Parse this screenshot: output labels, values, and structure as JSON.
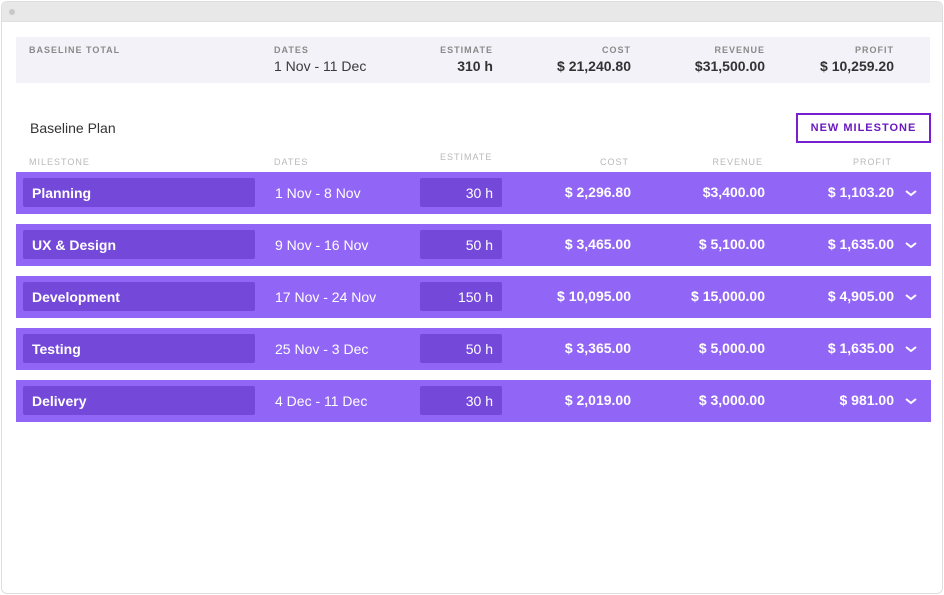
{
  "summary": {
    "label": "BASELINE TOTAL",
    "dates_label": "DATES",
    "dates_value": "1 Nov - 11 Dec",
    "estimate_label": "ESTIMATE",
    "estimate_value": "310 h",
    "cost_label": "COST",
    "cost_value": "$ 21,240.80",
    "revenue_label": "REVENUE",
    "revenue_value": "$31,500.00",
    "profit_label": "PROFIT",
    "profit_value": "$ 10,259.20"
  },
  "plan": {
    "title": "Baseline Plan",
    "new_button": "NEW MILESTONE"
  },
  "columns": {
    "milestone": "MILESTONE",
    "dates": "DATES",
    "estimate": "ESTIMATE",
    "cost": "COST",
    "revenue": "REVENUE",
    "profit": "PROFIT"
  },
  "milestones": [
    {
      "name": "Planning",
      "dates": "1 Nov - 8 Nov",
      "estimate": "30 h",
      "cost": "$ 2,296.80",
      "revenue": "$3,400.00",
      "profit": "$ 1,103.20"
    },
    {
      "name": "UX & Design",
      "dates": "9 Nov - 16 Nov",
      "estimate": "50 h",
      "cost": "$ 3,465.00",
      "revenue": "$ 5,100.00",
      "profit": "$ 1,635.00"
    },
    {
      "name": "Development",
      "dates": "17 Nov - 24 Nov",
      "estimate": "150 h",
      "cost": "$ 10,095.00",
      "revenue": "$ 15,000.00",
      "profit": "$ 4,905.00"
    },
    {
      "name": "Testing",
      "dates": "25 Nov - 3 Dec",
      "estimate": "50 h",
      "cost": "$ 3,365.00",
      "revenue": "$ 5,000.00",
      "profit": "$ 1,635.00"
    },
    {
      "name": "Delivery",
      "dates": "4 Dec - 11 Dec",
      "estimate": "30 h",
      "cost": "$ 2,019.00",
      "revenue": "$ 3,000.00",
      "profit": "$ 981.00"
    }
  ],
  "icons": {
    "row_toggle": "chevron-down-icon"
  },
  "colors": {
    "row_bg": "#9165f5",
    "box_bg": "#7448d9",
    "accent": "#7a1fd0"
  }
}
